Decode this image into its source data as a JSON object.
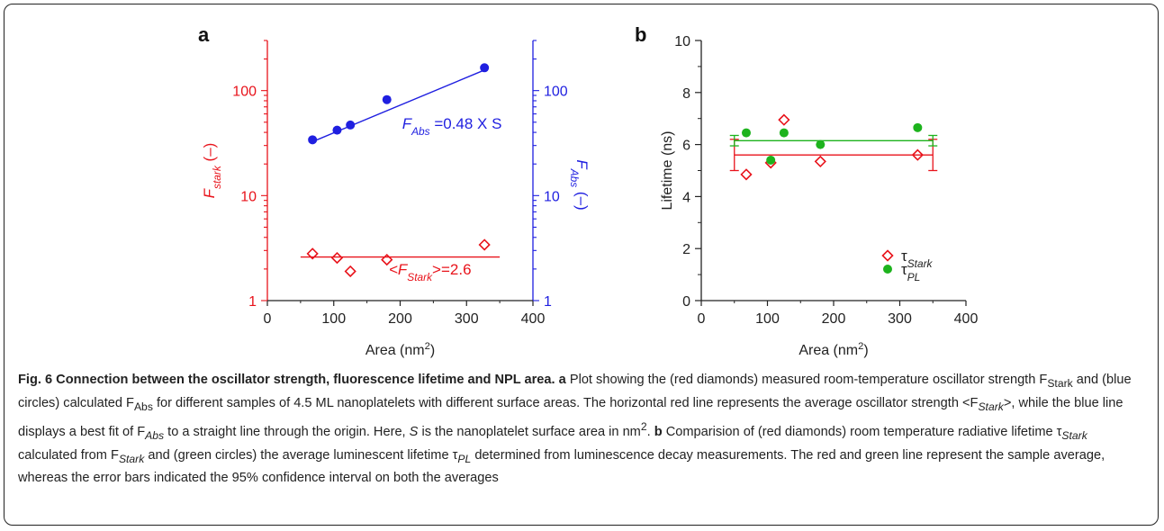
{
  "chart_data": [
    {
      "panel": "a",
      "type": "scatter",
      "log_y": true,
      "x": {
        "label": "Area (nm",
        "label_sup": "2",
        "label_close": ")",
        "lim": [
          0,
          400
        ],
        "ticks": [
          "0",
          "100",
          "200",
          "300",
          "400"
        ]
      },
      "y_left": {
        "label_var": "F",
        "label_sub": "stark",
        "label_unit": " (–)",
        "lim": [
          1,
          300
        ],
        "ticks": [
          {
            "v": 1,
            "t": "1"
          },
          {
            "v": 10,
            "t": "10"
          },
          {
            "v": 100,
            "t": "100"
          }
        ],
        "color": "#e8131b"
      },
      "y_right": {
        "label_var": "F",
        "label_sub": "Abs",
        "label_unit": " (–)",
        "lim": [
          1,
          300
        ],
        "ticks": [
          {
            "v": 1,
            "t": "1"
          },
          {
            "v": 10,
            "t": "10"
          },
          {
            "v": 100,
            "t": "100"
          }
        ],
        "color": "#1f1fe0"
      },
      "series": [
        {
          "marker": "diamond-open",
          "color": "#e8131b",
          "axis": "left",
          "points": [
            {
              "x": 68,
              "y": 2.8
            },
            {
              "x": 105,
              "y": 2.55
            },
            {
              "x": 125,
              "y": 1.9
            },
            {
              "x": 180,
              "y": 2.45
            },
            {
              "x": 327,
              "y": 3.4
            }
          ],
          "line": {
            "x": [
              50,
              350
            ],
            "y": [
              2.6,
              2.6
            ]
          }
        },
        {
          "marker": "circle-filled",
          "color": "#1f1fe0",
          "axis": "right",
          "points": [
            {
              "x": 68,
              "y": 34
            },
            {
              "x": 105,
              "y": 42
            },
            {
              "x": 125,
              "y": 47
            },
            {
              "x": 180,
              "y": 82
            },
            {
              "x": 327,
              "y": 165
            }
          ],
          "line": {
            "x": [
              68,
              327
            ],
            "y": [
              32.6,
              157
            ]
          }
        }
      ],
      "annotations": [
        {
          "var": "F",
          "sub": "Abs",
          "text": " =0.48 X S",
          "x": 203,
          "y": 48,
          "color": "#1f1fe0"
        },
        {
          "var": "<F",
          "sub": "Stark",
          "text": ">=2.6",
          "x": 183,
          "y": 1.95,
          "color": "#e8131b"
        }
      ]
    },
    {
      "panel": "b",
      "type": "scatter",
      "x": {
        "label": "Area (nm",
        "label_sup": "2",
        "label_close": ")",
        "lim": [
          0,
          400
        ],
        "ticks": [
          "0",
          "100",
          "200",
          "300",
          "400"
        ]
      },
      "y": {
        "label": "Lifetime (ns)",
        "lim": [
          0,
          10
        ],
        "ticks": [
          "0",
          "2",
          "4",
          "6",
          "8",
          "10"
        ]
      },
      "series": [
        {
          "name_var": "τ",
          "name_sub": "Stark",
          "marker": "diamond-open",
          "color": "#e8131b",
          "points": [
            {
              "x": 68,
              "y": 4.85
            },
            {
              "x": 105,
              "y": 5.3
            },
            {
              "x": 125,
              "y": 6.95
            },
            {
              "x": 180,
              "y": 5.35
            },
            {
              "x": 327,
              "y": 5.6
            }
          ],
          "average": 5.6,
          "ci": [
            5.0,
            6.2
          ]
        },
        {
          "name_var": "τ",
          "name_sub": "PL",
          "marker": "circle-filled",
          "color": "#1db31d",
          "points": [
            {
              "x": 68,
              "y": 6.45
            },
            {
              "x": 105,
              "y": 5.4
            },
            {
              "x": 125,
              "y": 6.45
            },
            {
              "x": 180,
              "y": 6.0
            },
            {
              "x": 327,
              "y": 6.65
            }
          ],
          "average": 6.15,
          "ci": [
            5.95,
            6.35
          ]
        }
      ],
      "legend": "bottom-right"
    }
  ],
  "caption": {
    "figure_label": "Fig. 6 Connection between the oscillator strength, fluorescence lifetime and NPL area.",
    "a_label": "a",
    "a_text": "Plot showing the (red diamonds) measured room-temperature oscillator strength F",
    "a_sub1": "Stark",
    "a_text2": " and (blue circles) calculated F",
    "a_sub2": "Abs",
    "a_text3": " for different samples of 4.5 ML nanoplatelets with different surface areas. The horizontal red line represents the average oscillator strength <F",
    "a_sub3": "Stark",
    "a_text4": ">, while the blue line displays a best fit of F",
    "a_sub4": "Abs",
    "a_text5": " to a straight line through the origin. Here, ",
    "a_S": "S",
    "a_text6": " is the nanoplatelet surface area in nm",
    "a_sup": "2",
    "a_text7": ".",
    "b_label": "b",
    "b_text": "Comparision of (red diamonds) room temperature radiative lifetime τ",
    "b_sub1": "Stark",
    "b_text2": " calculated from F",
    "b_sub2": "Stark",
    "b_text3": " and (green circles) the average luminescent lifetime τ",
    "b_sub3": "PL",
    "b_text4": " determined from luminescence decay measurements. The red and green line represent the sample average, whereas the error bars indicated the 95% confidence interval on both the averages"
  }
}
